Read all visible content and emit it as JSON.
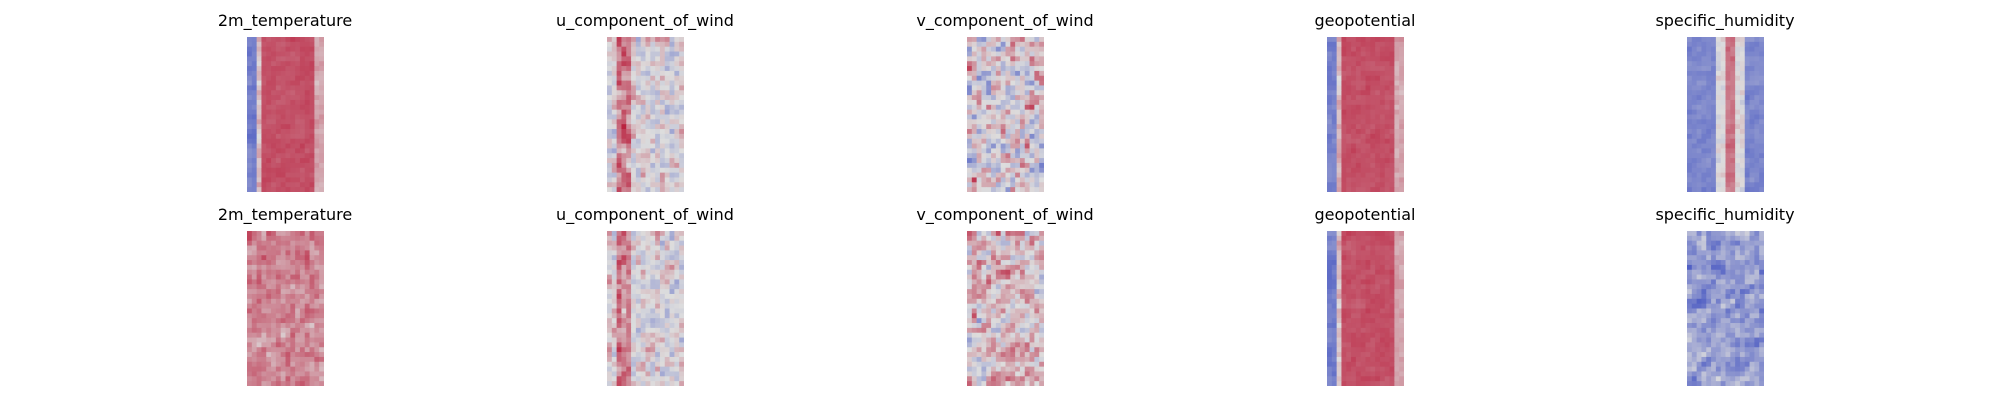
{
  "chart_data": {
    "type": "heatmap",
    "rows": 2,
    "columns": 5,
    "colormap": "coolwarm",
    "colorscale": {
      "low": "#3b4cc0",
      "mid": "#dddddd",
      "high": "#b40426"
    },
    "axes_visible": false,
    "panels": [
      {
        "title": "2m_temperature",
        "pattern": "warm_band_cold_left_edge"
      },
      {
        "title": "u_component_of_wind",
        "pattern": "mixed_streaks_red_left"
      },
      {
        "title": "v_component_of_wind",
        "pattern": "mixed_noisy"
      },
      {
        "title": "geopotential",
        "pattern": "warm_band_cold_left_edge"
      },
      {
        "title": "specific_humidity",
        "pattern": "cold_sides_warm_center_streak"
      },
      {
        "title": "2m_temperature",
        "pattern": "warm_noisy"
      },
      {
        "title": "u_component_of_wind",
        "pattern": "mixed_streaks_red_left"
      },
      {
        "title": "v_component_of_wind",
        "pattern": "mixed_noisy_warm"
      },
      {
        "title": "geopotential",
        "pattern": "warm_band_cold_left_edge"
      },
      {
        "title": "specific_humidity",
        "pattern": "cold_noisy"
      }
    ]
  }
}
